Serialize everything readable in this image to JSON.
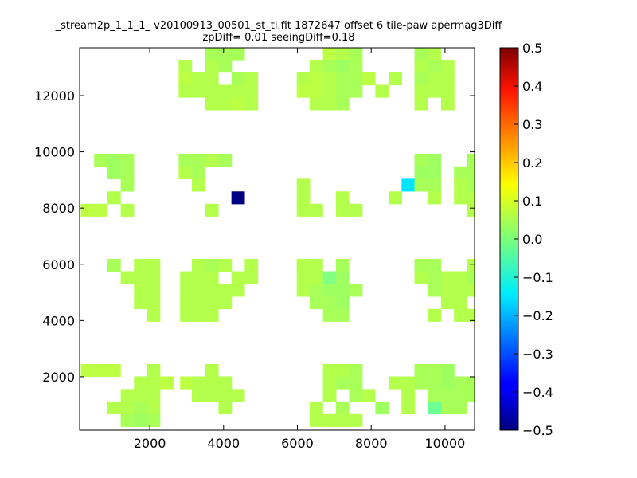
{
  "chart_data": {
    "type": "heatmap",
    "title_line1": "_stream2p_1_1_1_ v20100913_00501_st_tl.fit 1872647 offset 6 tile-paw apermag3Diff",
    "title_line2": "zpDiff= 0.01 seeingDiff=0.18",
    "xlabel": "",
    "ylabel": "",
    "xlim": [
      100,
      10800
    ],
    "ylim": [
      100,
      13700
    ],
    "xticks": [
      2000,
      4000,
      6000,
      8000,
      10000
    ],
    "yticks": [
      2000,
      4000,
      6000,
      8000,
      10000,
      12000
    ],
    "cell_size": [
      355,
      445
    ],
    "colorbar": {
      "min": -0.5,
      "max": 0.5,
      "colormap": "jet",
      "ticks": [
        0.5,
        0.4,
        0.3,
        0.2,
        0.1,
        0.0,
        -0.1,
        -0.2,
        -0.3,
        -0.4,
        -0.5
      ],
      "tick_labels": [
        "0.5",
        "0.4",
        "0.3",
        "0.2",
        "0.1",
        "0.0",
        "−0.1",
        "−0.2",
        "−0.3",
        "−0.4",
        "−0.5"
      ]
    },
    "cells": [
      [
        3680,
        13490,
        0.04
      ],
      [
        4040,
        13490,
        0.04
      ],
      [
        4390,
        13490,
        0.04
      ],
      [
        6870,
        13490,
        0.06
      ],
      [
        7220,
        13490,
        0.05
      ],
      [
        7580,
        13490,
        0.04
      ],
      [
        9350,
        13490,
        0.04
      ],
      [
        9710,
        13490,
        0.05
      ],
      [
        2960,
        13050,
        0.05
      ],
      [
        3680,
        13050,
        0.05
      ],
      [
        4040,
        13050,
        0.04
      ],
      [
        6510,
        13050,
        0.05
      ],
      [
        6870,
        13050,
        0.04
      ],
      [
        7220,
        13050,
        0.03
      ],
      [
        7580,
        13050,
        0.04
      ],
      [
        9350,
        13050,
        0.05
      ],
      [
        9710,
        13050,
        0.04
      ],
      [
        10070,
        13050,
        0.05
      ],
      [
        2960,
        12600,
        0.06
      ],
      [
        3320,
        12600,
        0.05
      ],
      [
        3680,
        12600,
        0.05
      ],
      [
        4390,
        12600,
        0.04
      ],
      [
        4750,
        12600,
        0.05
      ],
      [
        6160,
        12600,
        0.05
      ],
      [
        6510,
        12600,
        0.06
      ],
      [
        6870,
        12600,
        0.05
      ],
      [
        7220,
        12600,
        0.04
      ],
      [
        7580,
        12600,
        0.04
      ],
      [
        7930,
        12600,
        0.06
      ],
      [
        8650,
        12600,
        0.05
      ],
      [
        9350,
        12600,
        0.04
      ],
      [
        9710,
        12600,
        0.05
      ],
      [
        10070,
        12600,
        0.05
      ],
      [
        2960,
        12160,
        0.05
      ],
      [
        3320,
        12160,
        0.05
      ],
      [
        3680,
        12160,
        0.05
      ],
      [
        4040,
        12160,
        0.05
      ],
      [
        4390,
        12160,
        0.05
      ],
      [
        4750,
        12160,
        0.05
      ],
      [
        6160,
        12160,
        0.06
      ],
      [
        6510,
        12160,
        0.06
      ],
      [
        6870,
        12160,
        0.05
      ],
      [
        7220,
        12160,
        0.04
      ],
      [
        7580,
        12160,
        0.04
      ],
      [
        8290,
        12160,
        0.05
      ],
      [
        9350,
        12160,
        0.05
      ],
      [
        9710,
        12160,
        0.05
      ],
      [
        10070,
        12160,
        0.05
      ],
      [
        3680,
        11710,
        0.05
      ],
      [
        4040,
        11710,
        0.05
      ],
      [
        4390,
        11710,
        0.06
      ],
      [
        4750,
        11710,
        0.05
      ],
      [
        6510,
        11710,
        0.05
      ],
      [
        6870,
        11710,
        0.05
      ],
      [
        7220,
        11710,
        0.04
      ],
      [
        9350,
        11710,
        0.05
      ],
      [
        10070,
        11710,
        0.05
      ],
      [
        670,
        9710,
        0.04
      ],
      [
        1030,
        9710,
        0.03
      ],
      [
        1390,
        9710,
        0.04
      ],
      [
        2960,
        9710,
        0.04
      ],
      [
        3320,
        9710,
        0.04
      ],
      [
        3680,
        9710,
        0.05
      ],
      [
        4040,
        9710,
        0.04
      ],
      [
        9350,
        9710,
        0.04
      ],
      [
        9710,
        9710,
        0.03
      ],
      [
        10780,
        9710,
        0.04
      ],
      [
        1030,
        9260,
        0.03
      ],
      [
        1390,
        9260,
        0.04
      ],
      [
        2960,
        9260,
        0.05
      ],
      [
        3320,
        9260,
        0.04
      ],
      [
        9350,
        9260,
        0.03
      ],
      [
        9710,
        9260,
        0.03
      ],
      [
        10420,
        9260,
        0.04
      ],
      [
        10780,
        9260,
        0.04
      ],
      [
        1390,
        8820,
        0.04
      ],
      [
        3320,
        8820,
        0.05
      ],
      [
        6160,
        8820,
        0.05
      ],
      [
        9000,
        8820,
        -0.15
      ],
      [
        9350,
        8820,
        0.04
      ],
      [
        9710,
        8820,
        0.04
      ],
      [
        10420,
        8820,
        0.05
      ],
      [
        10780,
        8820,
        0.04
      ],
      [
        1030,
        8370,
        0.05
      ],
      [
        4390,
        8370,
        -0.5
      ],
      [
        6160,
        8370,
        0.05
      ],
      [
        7220,
        8370,
        0.05
      ],
      [
        8650,
        8370,
        0.05
      ],
      [
        9710,
        8370,
        0.05
      ],
      [
        10420,
        8370,
        0.05
      ],
      [
        10780,
        8370,
        0.05
      ],
      [
        310,
        7930,
        0.06
      ],
      [
        670,
        7930,
        0.06
      ],
      [
        1390,
        7930,
        0.05
      ],
      [
        3680,
        7930,
        0.05
      ],
      [
        6160,
        7930,
        0.05
      ],
      [
        6510,
        7930,
        0.05
      ],
      [
        7220,
        7930,
        0.05
      ],
      [
        7580,
        7930,
        0.05
      ],
      [
        10780,
        7930,
        0.05
      ],
      [
        1030,
        5970,
        0.04
      ],
      [
        1750,
        5970,
        0.05
      ],
      [
        2100,
        5970,
        0.05
      ],
      [
        3320,
        5970,
        0.05
      ],
      [
        3680,
        5970,
        0.04
      ],
      [
        4040,
        5970,
        0.05
      ],
      [
        4750,
        5970,
        0.05
      ],
      [
        6160,
        5970,
        0.05
      ],
      [
        6510,
        5970,
        0.05
      ],
      [
        7220,
        5970,
        0.04
      ],
      [
        9350,
        5970,
        0.04
      ],
      [
        9710,
        5970,
        0.04
      ],
      [
        10780,
        5970,
        0.05
      ],
      [
        1390,
        5530,
        0.05
      ],
      [
        1750,
        5530,
        0.05
      ],
      [
        2100,
        5530,
        0.05
      ],
      [
        3000,
        5530,
        0.05
      ],
      [
        3320,
        5530,
        0.05
      ],
      [
        3680,
        5530,
        0.05
      ],
      [
        4390,
        5530,
        0.05
      ],
      [
        4750,
        5530,
        0.05
      ],
      [
        6160,
        5530,
        0.05
      ],
      [
        6510,
        5530,
        0.05
      ],
      [
        6870,
        5530,
        0.0
      ],
      [
        7220,
        5530,
        0.03
      ],
      [
        9350,
        5530,
        0.05
      ],
      [
        9710,
        5530,
        0.04
      ],
      [
        10070,
        5530,
        0.05
      ],
      [
        10420,
        5530,
        0.05
      ],
      [
        10780,
        5530,
        0.04
      ],
      [
        1750,
        5080,
        0.05
      ],
      [
        2100,
        5080,
        0.05
      ],
      [
        3000,
        5080,
        0.05
      ],
      [
        3320,
        5080,
        0.05
      ],
      [
        3680,
        5080,
        0.05
      ],
      [
        4040,
        5080,
        0.05
      ],
      [
        4390,
        5080,
        0.05
      ],
      [
        6160,
        5080,
        0.05
      ],
      [
        6510,
        5080,
        0.04
      ],
      [
        6870,
        5080,
        0.03
      ],
      [
        7220,
        5080,
        0.03
      ],
      [
        7580,
        5080,
        0.04
      ],
      [
        9710,
        5080,
        0.04
      ],
      [
        10070,
        5080,
        0.05
      ],
      [
        10420,
        5080,
        0.05
      ],
      [
        10780,
        5080,
        0.05
      ],
      [
        1750,
        4640,
        0.05
      ],
      [
        2100,
        4640,
        0.05
      ],
      [
        3000,
        4640,
        0.05
      ],
      [
        3320,
        4640,
        0.05
      ],
      [
        3680,
        4640,
        0.05
      ],
      [
        4040,
        4640,
        0.05
      ],
      [
        6510,
        4640,
        0.04
      ],
      [
        6870,
        4640,
        0.04
      ],
      [
        7220,
        4640,
        0.03
      ],
      [
        10070,
        4640,
        0.05
      ],
      [
        10420,
        4640,
        0.05
      ],
      [
        2100,
        4190,
        0.05
      ],
      [
        3000,
        4190,
        0.05
      ],
      [
        3320,
        4190,
        0.05
      ],
      [
        3680,
        4190,
        0.05
      ],
      [
        6870,
        4190,
        0.04
      ],
      [
        7220,
        4190,
        0.04
      ],
      [
        9710,
        4190,
        0.05
      ],
      [
        10420,
        4190,
        0.05
      ],
      [
        10780,
        4190,
        0.05
      ],
      [
        310,
        2230,
        0.06
      ],
      [
        670,
        2230,
        0.06
      ],
      [
        1030,
        2230,
        0.06
      ],
      [
        2100,
        2230,
        0.05
      ],
      [
        3680,
        2230,
        0.05
      ],
      [
        6870,
        2230,
        0.05
      ],
      [
        7220,
        2230,
        0.05
      ],
      [
        7580,
        2230,
        0.04
      ],
      [
        9350,
        2230,
        0.04
      ],
      [
        9710,
        2230,
        0.04
      ],
      [
        10070,
        2230,
        0.03
      ],
      [
        1750,
        1790,
        0.05
      ],
      [
        2100,
        1790,
        0.05
      ],
      [
        2460,
        1790,
        0.06
      ],
      [
        3000,
        1790,
        0.06
      ],
      [
        3320,
        1790,
        0.05
      ],
      [
        3680,
        1790,
        0.05
      ],
      [
        4040,
        1790,
        0.05
      ],
      [
        6870,
        1790,
        0.05
      ],
      [
        7220,
        1790,
        0.04
      ],
      [
        7580,
        1790,
        0.04
      ],
      [
        8650,
        1790,
        0.05
      ],
      [
        9000,
        1790,
        0.05
      ],
      [
        9350,
        1790,
        0.04
      ],
      [
        9710,
        1790,
        0.04
      ],
      [
        10070,
        1790,
        0.03
      ],
      [
        10420,
        1790,
        0.04
      ],
      [
        10780,
        1790,
        0.04
      ],
      [
        1390,
        1340,
        0.05
      ],
      [
        1750,
        1340,
        0.05
      ],
      [
        2100,
        1340,
        0.05
      ],
      [
        3320,
        1340,
        0.05
      ],
      [
        3680,
        1340,
        0.05
      ],
      [
        4040,
        1340,
        0.05
      ],
      [
        4390,
        1340,
        0.05
      ],
      [
        6870,
        1340,
        0.05
      ],
      [
        7580,
        1340,
        0.04
      ],
      [
        7930,
        1340,
        0.05
      ],
      [
        9000,
        1340,
        0.05
      ],
      [
        9710,
        1340,
        0.04
      ],
      [
        10070,
        1340,
        0.04
      ],
      [
        10420,
        1340,
        0.04
      ],
      [
        10780,
        1340,
        0.04
      ],
      [
        1030,
        900,
        0.05
      ],
      [
        1390,
        900,
        0.05
      ],
      [
        1750,
        900,
        0.04
      ],
      [
        2100,
        900,
        0.05
      ],
      [
        4040,
        900,
        0.05
      ],
      [
        6510,
        900,
        0.05
      ],
      [
        7220,
        900,
        0.04
      ],
      [
        8290,
        900,
        0.03
      ],
      [
        9000,
        900,
        0.05
      ],
      [
        9710,
        900,
        -0.02
      ],
      [
        10070,
        900,
        0.04
      ],
      [
        10420,
        900,
        0.04
      ],
      [
        1390,
        450,
        0.04
      ],
      [
        1750,
        450,
        0.03
      ],
      [
        2100,
        450,
        0.04
      ],
      [
        6510,
        450,
        0.05
      ],
      [
        6870,
        450,
        0.05
      ],
      [
        7220,
        450,
        0.05
      ],
      [
        7580,
        450,
        0.05
      ]
    ]
  }
}
